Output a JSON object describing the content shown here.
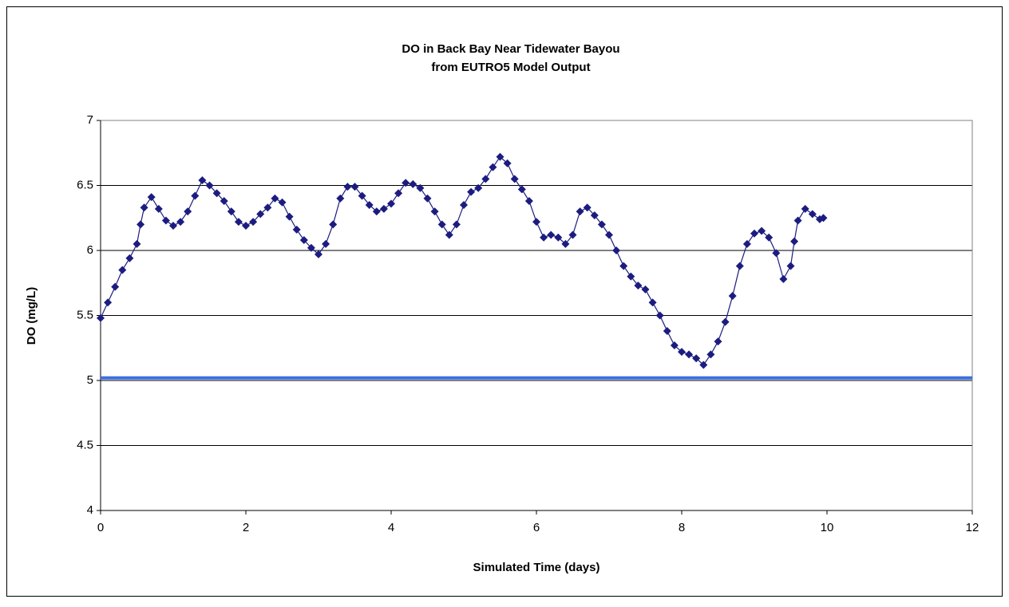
{
  "chart_data": {
    "type": "line",
    "title": "DO in Back Bay Near Tidewater Bayou",
    "subtitle": "from EUTRO5 Model Output",
    "x_label": "Simulated Time (days)",
    "y_label": "DO (mg/L)",
    "series": [
      {
        "color": "#1c1c80",
        "marker": "diamond",
        "x": [
          0,
          0.1,
          0.2,
          0.3,
          0.4,
          0.5,
          0.55,
          0.6,
          0.7,
          0.8,
          0.9,
          1.0,
          1.1,
          1.2,
          1.3,
          1.4,
          1.5,
          1.6,
          1.7,
          1.8,
          1.9,
          2.0,
          2.1,
          2.2,
          2.3,
          2.4,
          2.5,
          2.6,
          2.7,
          2.8,
          2.9,
          3.0,
          3.1,
          3.2,
          3.3,
          3.4,
          3.5,
          3.6,
          3.7,
          3.8,
          3.9,
          4.0,
          4.1,
          4.2,
          4.3,
          4.4,
          4.5,
          4.6,
          4.7,
          4.8,
          4.9,
          5.0,
          5.1,
          5.2,
          5.3,
          5.4,
          5.5,
          5.6,
          5.7,
          5.8,
          5.9,
          6.0,
          6.1,
          6.2,
          6.3,
          6.4,
          6.5,
          6.6,
          6.7,
          6.8,
          6.9,
          7.0,
          7.1,
          7.2,
          7.3,
          7.4,
          7.5,
          7.6,
          7.7,
          7.8,
          7.9,
          8.0,
          8.1,
          8.2,
          8.3,
          8.4,
          8.5,
          8.6,
          8.7,
          8.8,
          8.9,
          9.0,
          9.1,
          9.2,
          9.3,
          9.4,
          9.5,
          9.55,
          9.6,
          9.7,
          9.8,
          9.9,
          9.95
        ],
        "values": [
          5.48,
          5.6,
          5.72,
          5.85,
          5.94,
          6.05,
          6.2,
          6.33,
          6.41,
          6.32,
          6.23,
          6.19,
          6.22,
          6.3,
          6.42,
          6.54,
          6.5,
          6.44,
          6.38,
          6.3,
          6.22,
          6.19,
          6.22,
          6.28,
          6.33,
          6.4,
          6.37,
          6.26,
          6.16,
          6.08,
          6.02,
          5.97,
          6.05,
          6.2,
          6.4,
          6.49,
          6.49,
          6.42,
          6.35,
          6.3,
          6.32,
          6.36,
          6.44,
          6.52,
          6.51,
          6.48,
          6.4,
          6.3,
          6.2,
          6.12,
          6.2,
          6.35,
          6.45,
          6.48,
          6.55,
          6.64,
          6.72,
          6.67,
          6.55,
          6.47,
          6.38,
          6.22,
          6.1,
          6.12,
          6.1,
          6.05,
          6.12,
          6.3,
          6.33,
          6.27,
          6.2,
          6.12,
          6.0,
          5.88,
          5.8,
          5.73,
          5.7,
          5.6,
          5.5,
          5.38,
          5.27,
          5.22,
          5.2,
          5.17,
          5.12,
          5.2,
          5.3,
          5.45,
          5.65,
          5.88,
          6.05,
          6.13,
          6.15,
          6.1,
          5.98,
          5.78,
          5.88,
          6.07,
          6.23,
          6.32,
          6.28,
          6.24,
          6.25
        ]
      },
      {
        "color": "#3c6fe0",
        "marker": "none",
        "x": [
          0,
          12
        ],
        "values": [
          5.02,
          5.02
        ]
      }
    ],
    "xlim": [
      0,
      12
    ],
    "xticks": [
      0,
      2,
      4,
      6,
      8,
      10,
      12
    ],
    "ylim": [
      4,
      7
    ],
    "yticks": [
      4,
      4.5,
      5,
      5.5,
      6,
      6.5,
      7
    ],
    "grid": true
  }
}
